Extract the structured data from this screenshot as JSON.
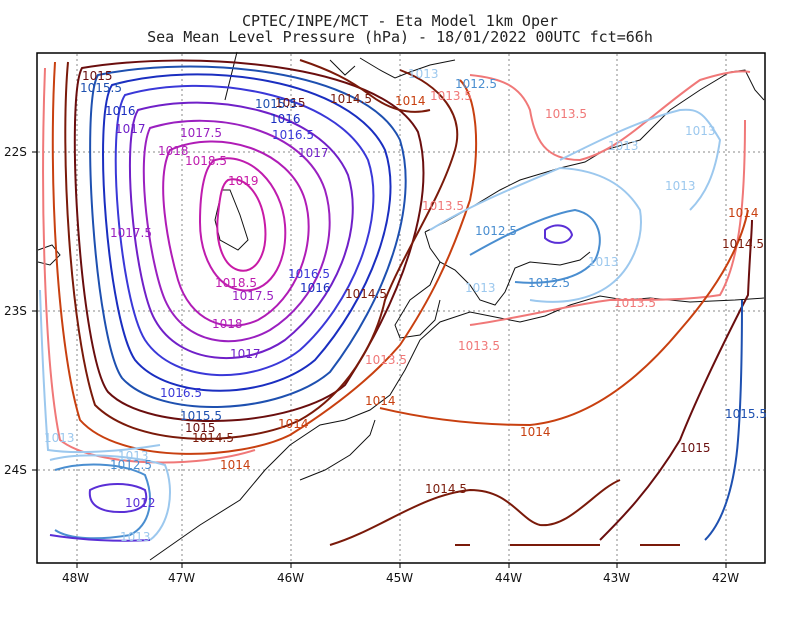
{
  "title": {
    "line1": "CPTEC/INPE/MCT -  Eta Model 1km Oper",
    "line2": "Sea Mean Level Pressure (hPa) - 18/01/2022 00UTC fct=66h"
  },
  "axes": {
    "lon_ticks": [
      "48W",
      "47W",
      "46W",
      "45W",
      "44W",
      "43W",
      "42W"
    ],
    "lat_ticks": [
      "22S",
      "23S",
      "24S"
    ]
  },
  "contour_labels": [
    {
      "text": "1015",
      "color": "#8b1a1a"
    },
    {
      "text": "1015.5",
      "color": "#1f4fa8"
    },
    {
      "text": "1016",
      "color": "#2a3fd0"
    },
    {
      "text": "1016.5",
      "color": "#3b2fd6"
    },
    {
      "text": "1017",
      "color": "#6a1fc9"
    },
    {
      "text": "1017.5",
      "color": "#8a1fc4"
    },
    {
      "text": "1018",
      "color": "#a01cb8"
    },
    {
      "text": "1018.5",
      "color": "#b51cb0"
    },
    {
      "text": "1019",
      "color": "#c41aa8"
    },
    {
      "text": "1014.5",
      "color": "#7a1a0a"
    },
    {
      "text": "1014",
      "color": "#c0400a"
    },
    {
      "text": "1013.5",
      "color": "#f07070"
    },
    {
      "text": "1013",
      "color": "#8ab8e8"
    },
    {
      "text": "1012.5",
      "color": "#4a90d0"
    },
    {
      "text": "1012",
      "color": "#3a2fd6"
    }
  ],
  "colors": {
    "c1012": "#5a2fd6",
    "c1012_5": "#4a8ed0",
    "c1013": "#9cc8ee",
    "c1013_5": "#f07878",
    "c1014": "#c84010",
    "c1014_5": "#7a1a0a",
    "c1015": "#6a0e0e",
    "c1015_5": "#1e50b0",
    "c1016": "#1a2ec0",
    "c1016_5": "#3a38d8",
    "c1017": "#7020c8",
    "c1017_5": "#9a20c0",
    "c1018": "#b01cb6",
    "c1018_5": "#bf1cae",
    "c1019": "#c81aa6",
    "coast": "#111111",
    "grid": "#888888"
  }
}
